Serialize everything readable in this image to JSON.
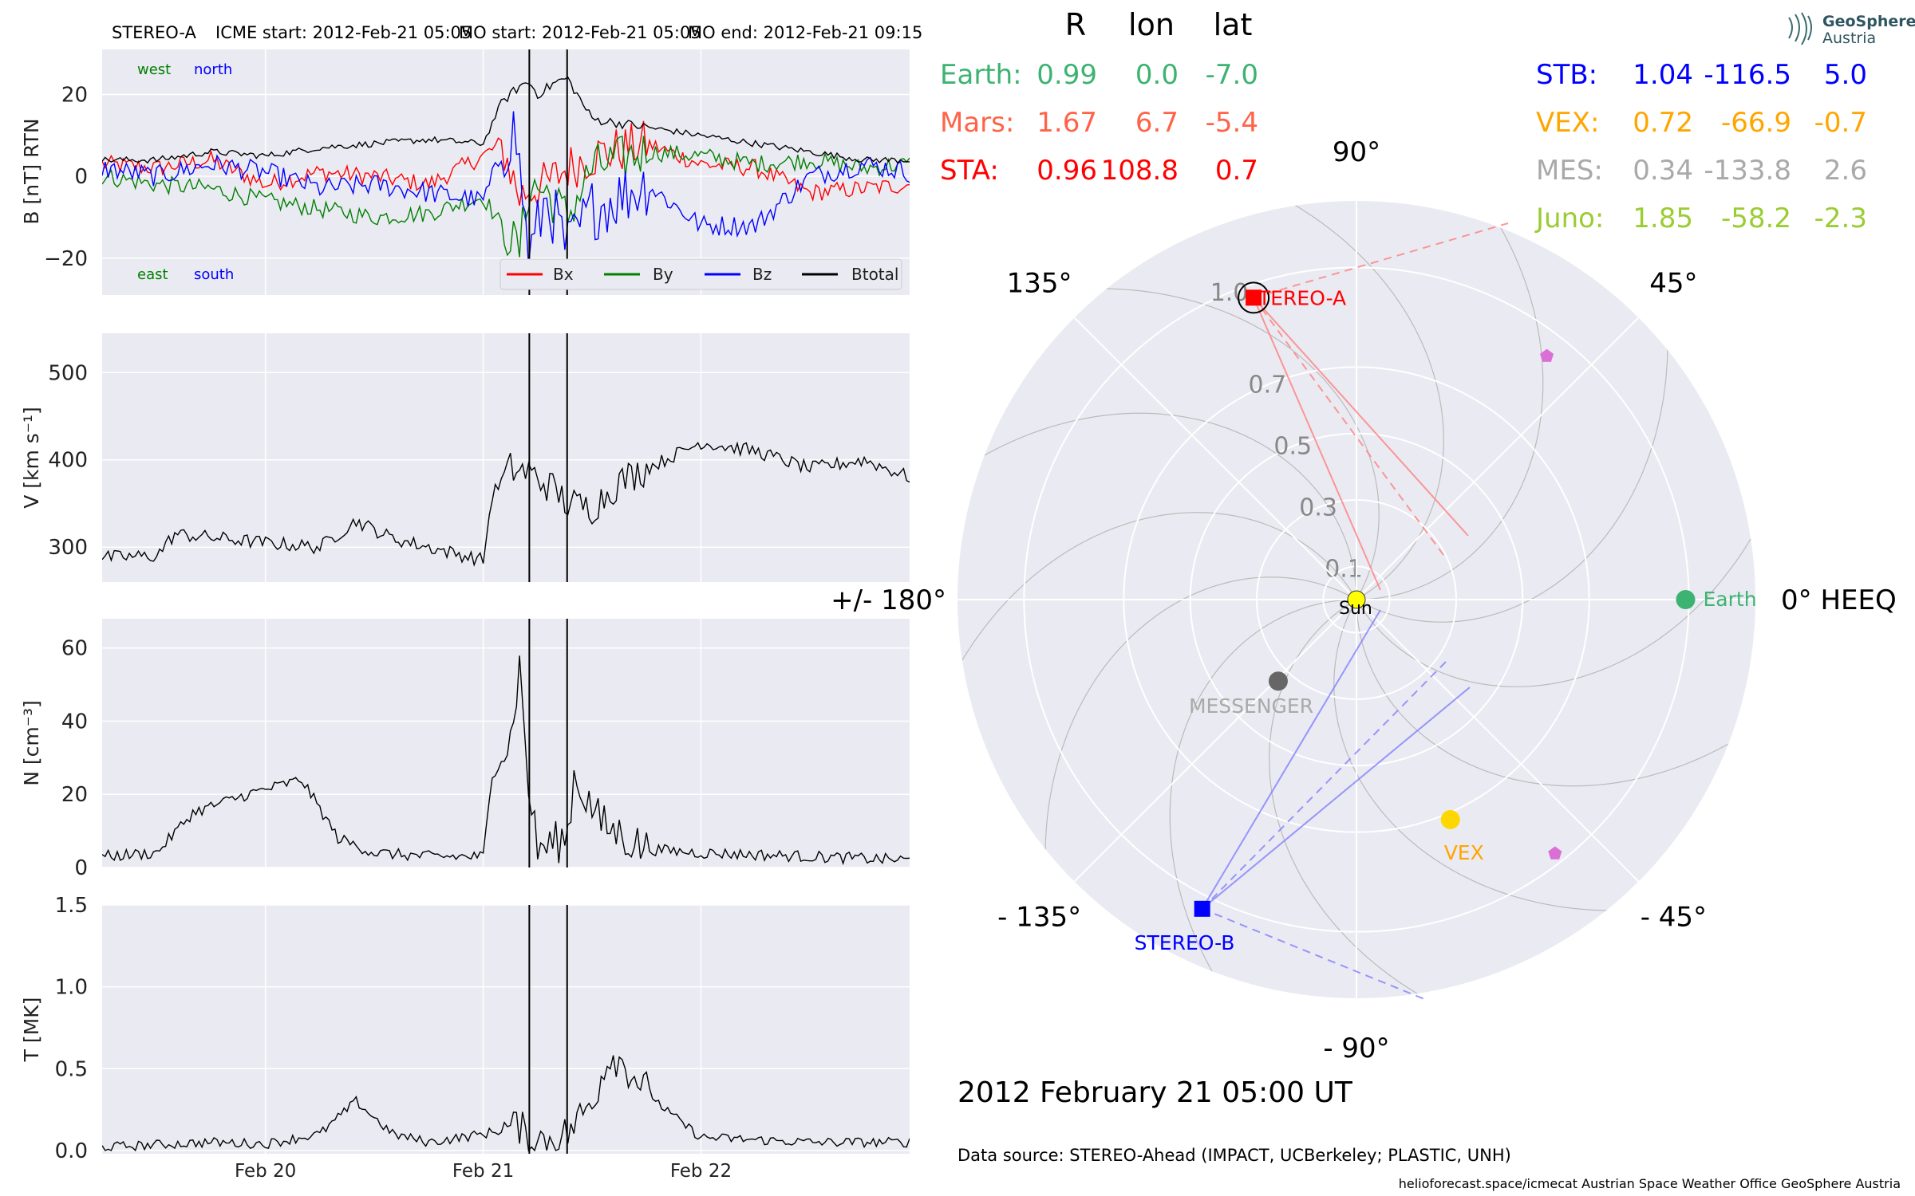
{
  "header": {
    "spacecraft": "STEREO-A",
    "icme_start": "ICME start: 2012-Feb-21 05:05",
    "mo_start": "MO start: 2012-Feb-21 05:05",
    "mo_end": "MO end: 2012-Feb-21 09:15"
  },
  "logo": {
    "line1": "GeoSphere",
    "line2": "Austria"
  },
  "colors": {
    "panel_bg": "#eaeaf2",
    "bx": "#ff0000",
    "by": "#008000",
    "bz": "#0000ff",
    "btotal": "#000000",
    "earth": "#3cb371",
    "mars": "#ff6347",
    "sta": "#ff0000",
    "stb": "#0000ff",
    "vex": "#ffa500",
    "mes": "#a9a9a9",
    "juno": "#9acd32"
  },
  "time_axis": {
    "start": "2012-02-19 06:00",
    "end": "2012-02-22 23:00",
    "ticks": [
      {
        "label": "Feb 20",
        "t": "2012-02-20 00:00"
      },
      {
        "label": "Feb 21",
        "t": "2012-02-21 00:00"
      },
      {
        "label": "Feb 22",
        "t": "2012-02-22 00:00"
      }
    ],
    "event_lines": [
      "2012-02-21 05:05",
      "2012-02-21 09:15"
    ]
  },
  "chart_data": [
    {
      "type": "line",
      "ylabel": "B [nT] RTN",
      "ylim": [
        -29,
        31
      ],
      "yticks": [
        -20,
        0,
        20
      ],
      "yticklabels": [
        "−20",
        "0",
        "20"
      ],
      "annotations": {
        "west": "west",
        "north": "north",
        "east": "east",
        "south": "south"
      },
      "legend": {
        "placement": "lower-right"
      },
      "grid": true,
      "series": [
        {
          "name": "Bx",
          "key": "bx",
          "x": [
            "2012-02-19 06:00",
            "2012-02-19 12:00",
            "2012-02-19 18:00",
            "2012-02-20 00:00",
            "2012-02-20 06:00",
            "2012-02-20 12:00",
            "2012-02-20 18:00",
            "2012-02-21 00:00",
            "2012-02-21 02:00",
            "2012-02-21 04:00",
            "2012-02-21 05:05",
            "2012-02-21 07:00",
            "2012-02-21 09:15",
            "2012-02-21 12:00",
            "2012-02-21 18:00",
            "2012-02-22 00:00",
            "2012-02-22 06:00",
            "2012-02-22 12:00",
            "2012-02-22 18:00",
            "2012-02-22 23:00"
          ],
          "y": [
            3,
            2,
            4,
            -2,
            1,
            0,
            -2,
            5,
            8,
            -5,
            -3,
            -2,
            2,
            5,
            8,
            3,
            2,
            -4,
            -3,
            -2
          ]
        },
        {
          "name": "By",
          "key": "by",
          "x": [
            "2012-02-19 06:00",
            "2012-02-19 12:00",
            "2012-02-19 18:00",
            "2012-02-20 00:00",
            "2012-02-20 06:00",
            "2012-02-20 12:00",
            "2012-02-20 18:00",
            "2012-02-21 00:00",
            "2012-02-21 02:00",
            "2012-02-21 04:00",
            "2012-02-21 05:05",
            "2012-02-21 07:00",
            "2012-02-21 09:15",
            "2012-02-21 12:00",
            "2012-02-21 18:00",
            "2012-02-22 00:00",
            "2012-02-22 06:00",
            "2012-02-22 12:00",
            "2012-02-22 18:00",
            "2012-02-22 23:00"
          ],
          "y": [
            0,
            -2,
            -3,
            -6,
            -8,
            -10,
            -9,
            -5,
            -12,
            -18,
            -2,
            -4,
            -10,
            2,
            6,
            5,
            3,
            4,
            2,
            3
          ]
        },
        {
          "name": "Bz",
          "key": "bz",
          "x": [
            "2012-02-19 06:00",
            "2012-02-19 12:00",
            "2012-02-19 18:00",
            "2012-02-20 00:00",
            "2012-02-20 06:00",
            "2012-02-20 12:00",
            "2012-02-20 18:00",
            "2012-02-21 00:00",
            "2012-02-21 02:00",
            "2012-02-21 03:30",
            "2012-02-21 04:30",
            "2012-02-21 05:05",
            "2012-02-21 07:00",
            "2012-02-21 09:15",
            "2012-02-21 12:00",
            "2012-02-21 18:00",
            "2012-02-22 00:00",
            "2012-02-22 06:00",
            "2012-02-22 12:00",
            "2012-02-22 18:00",
            "2012-02-22 23:00"
          ],
          "y": [
            2,
            0,
            3,
            1,
            -3,
            -2,
            -4,
            -6,
            5,
            12,
            -8,
            -20,
            -5,
            -18,
            -8,
            -2,
            -12,
            -12,
            0,
            3,
            1
          ]
        },
        {
          "name": "Btotal",
          "key": "btotal",
          "x": [
            "2012-02-19 06:00",
            "2012-02-19 12:00",
            "2012-02-19 18:00",
            "2012-02-20 00:00",
            "2012-02-20 06:00",
            "2012-02-20 12:00",
            "2012-02-20 18:00",
            "2012-02-21 00:00",
            "2012-02-21 02:00",
            "2012-02-21 04:00",
            "2012-02-21 05:05",
            "2012-02-21 06:00",
            "2012-02-21 08:00",
            "2012-02-21 09:15",
            "2012-02-21 12:00",
            "2012-02-21 18:00",
            "2012-02-22 00:00",
            "2012-02-22 06:00",
            "2012-02-22 12:00",
            "2012-02-22 18:00",
            "2012-02-22 23:00"
          ],
          "y": [
            4,
            4,
            6,
            5,
            7,
            8,
            9,
            8,
            18,
            22,
            23,
            20,
            23,
            24,
            14,
            12,
            10,
            8,
            6,
            4,
            4
          ]
        }
      ]
    },
    {
      "type": "line",
      "ylabel": "V [km s⁻¹]",
      "ylim": [
        260,
        545
      ],
      "yticks": [
        300,
        400,
        500
      ],
      "yticklabels": [
        "300",
        "400",
        "500"
      ],
      "grid": true,
      "series": [
        {
          "name": "",
          "key": "v",
          "x": [
            "2012-02-19 06:00",
            "2012-02-19 12:00",
            "2012-02-19 14:00",
            "2012-02-20 00:00",
            "2012-02-20 06:00",
            "2012-02-20 10:00",
            "2012-02-20 14:00",
            "2012-02-20 20:00",
            "2012-02-21 00:00",
            "2012-02-21 01:00",
            "2012-02-21 03:00",
            "2012-02-21 05:05",
            "2012-02-21 08:00",
            "2012-02-21 09:15",
            "2012-02-21 12:00",
            "2012-02-21 15:00",
            "2012-02-21 20:00",
            "2012-02-22 00:00",
            "2012-02-22 06:00",
            "2012-02-22 12:00",
            "2012-02-22 18:00",
            "2012-02-22 23:00"
          ],
          "y": [
            288,
            290,
            315,
            305,
            300,
            330,
            310,
            295,
            285,
            360,
            390,
            385,
            365,
            350,
            345,
            375,
            400,
            420,
            410,
            390,
            400,
            380
          ]
        }
      ]
    },
    {
      "type": "line",
      "ylabel": "N [cm⁻³]",
      "ylim": [
        0,
        68
      ],
      "yticks": [
        0,
        20,
        40,
        60
      ],
      "yticklabels": [
        "0",
        "20",
        "40",
        "60"
      ],
      "grid": true,
      "series": [
        {
          "name": "",
          "key": "n",
          "x": [
            "2012-02-19 06:00",
            "2012-02-19 12:00",
            "2012-02-19 16:00",
            "2012-02-19 22:00",
            "2012-02-20 04:00",
            "2012-02-20 08:00",
            "2012-02-20 12:00",
            "2012-02-20 18:00",
            "2012-02-21 00:00",
            "2012-02-21 01:00",
            "2012-02-21 03:00",
            "2012-02-21 04:00",
            "2012-02-21 05:05",
            "2012-02-21 06:00",
            "2012-02-21 09:15",
            "2012-02-21 10:00",
            "2012-02-21 13:00",
            "2012-02-21 18:00",
            "2012-02-22 00:00",
            "2012-02-22 12:00",
            "2012-02-22 23:00"
          ],
          "y": [
            3,
            4,
            15,
            20,
            24,
            8,
            4,
            3,
            3,
            25,
            35,
            55,
            20,
            5,
            8,
            25,
            12,
            5,
            4,
            3,
            2
          ]
        }
      ]
    },
    {
      "type": "line",
      "ylabel": "T [MK]",
      "ylim": [
        -0.02,
        1.5
      ],
      "yticks": [
        0,
        0.5,
        1.0,
        1.5
      ],
      "yticklabels": [
        "0.0",
        "0.5",
        "1.0",
        "1.5"
      ],
      "grid": true,
      "series": [
        {
          "name": "",
          "key": "t",
          "x": [
            "2012-02-19 06:00",
            "2012-02-19 18:00",
            "2012-02-20 00:00",
            "2012-02-20 06:00",
            "2012-02-20 10:00",
            "2012-02-20 14:00",
            "2012-02-20 18:00",
            "2012-02-21 00:00",
            "2012-02-21 04:00",
            "2012-02-21 05:05",
            "2012-02-21 09:15",
            "2012-02-21 12:00",
            "2012-02-21 14:00",
            "2012-02-21 16:00",
            "2012-02-21 20:00",
            "2012-02-22 00:00",
            "2012-02-22 12:00",
            "2012-02-22 23:00"
          ],
          "y": [
            0.02,
            0.05,
            0.04,
            0.1,
            0.3,
            0.1,
            0.05,
            0.1,
            0.15,
            0.05,
            0.1,
            0.3,
            0.6,
            0.5,
            0.25,
            0.08,
            0.05,
            0.05
          ]
        }
      ]
    },
    {
      "type": "scatter",
      "projection": "polar",
      "rlim": [
        0,
        1.2
      ],
      "rticks": [
        0.1,
        0.3,
        0.5,
        0.7,
        1.0
      ],
      "rticklabels": [
        "0.1",
        "0.3",
        "0.5",
        "0.7",
        "1.0"
      ],
      "theta_labels": [
        {
          "deg": 0,
          "label": "0° HEEQ"
        },
        {
          "deg": 45,
          "label": "45°"
        },
        {
          "deg": 90,
          "label": "90°"
        },
        {
          "deg": 135,
          "label": "135°"
        },
        {
          "deg": 180,
          "label": "+/- 180°"
        },
        {
          "deg": -135,
          "label": "- 135°"
        },
        {
          "deg": -90,
          "label": "- 90°"
        },
        {
          "deg": -45,
          "label": "- 45°"
        }
      ],
      "bodies": [
        {
          "name": "Sun",
          "key": "sun",
          "r": 0,
          "lon": 0,
          "marker": "circle",
          "color": "#ffff00"
        },
        {
          "name": "Earth",
          "key": "earth",
          "r": 0.99,
          "lon": 0.0,
          "marker": "circle",
          "color": "#3cb371"
        },
        {
          "name": "STEREO-A",
          "key": "stereo-a",
          "r": 0.96,
          "lon": 108.8,
          "marker": "square",
          "color": "#ff0000"
        },
        {
          "name": "STEREO-B",
          "key": "stereo-b",
          "r": 1.04,
          "lon": -116.5,
          "marker": "square",
          "color": "#0000ff"
        },
        {
          "name": "VEX",
          "key": "vex",
          "r": 0.72,
          "lon": -66.9,
          "marker": "circle",
          "color": "#ffd700"
        },
        {
          "name": "MESSENGER",
          "key": "messenger",
          "r": 0.34,
          "lon": -133.8,
          "marker": "circle",
          "color": "#666666"
        },
        {
          "name": "",
          "key": "pentagon-a",
          "r": 0.93,
          "lon": 52,
          "marker": "pentagon",
          "color": "#da70d6"
        },
        {
          "name": "",
          "key": "pentagon-b",
          "r": 0.97,
          "lon": -52,
          "marker": "pentagon",
          "color": "#da70d6"
        }
      ]
    }
  ],
  "positions_table": {
    "headers": {
      "r": "R",
      "lon": "lon",
      "lat": "lat"
    },
    "left": [
      {
        "name": "Earth:",
        "r": "0.99",
        "lon": "0.0",
        "lat": "-7.0",
        "color": "#3cb371"
      },
      {
        "name": "Mars:",
        "r": "1.67",
        "lon": "6.7",
        "lat": "-5.4",
        "color": "#ff6347"
      },
      {
        "name": "STA:",
        "r": "0.96",
        "lon": "108.8",
        "lat": "0.7",
        "color": "#ff0000"
      }
    ],
    "right": [
      {
        "name": "STB:",
        "r": "1.04",
        "lon": "-116.5",
        "lat": "5.0",
        "color": "#0000ff"
      },
      {
        "name": "VEX:",
        "r": "0.72",
        "lon": "-66.9",
        "lat": "-0.7",
        "color": "#ffa500"
      },
      {
        "name": "MES:",
        "r": "0.34",
        "lon": "-133.8",
        "lat": "2.6",
        "color": "#a9a9a9"
      },
      {
        "name": "Juno:",
        "r": "1.85",
        "lon": "-58.2",
        "lat": "-2.3",
        "color": "#9acd32"
      }
    ]
  },
  "footer": {
    "date": "2012 February 21  05:00 UT",
    "source": "Data source: STEREO-Ahead (IMPACT, UCBerkeley; PLASTIC, UNH)",
    "credits": "helioforecast.space/icmecat   Austrian Space Weather Office   GeoSphere Austria"
  }
}
